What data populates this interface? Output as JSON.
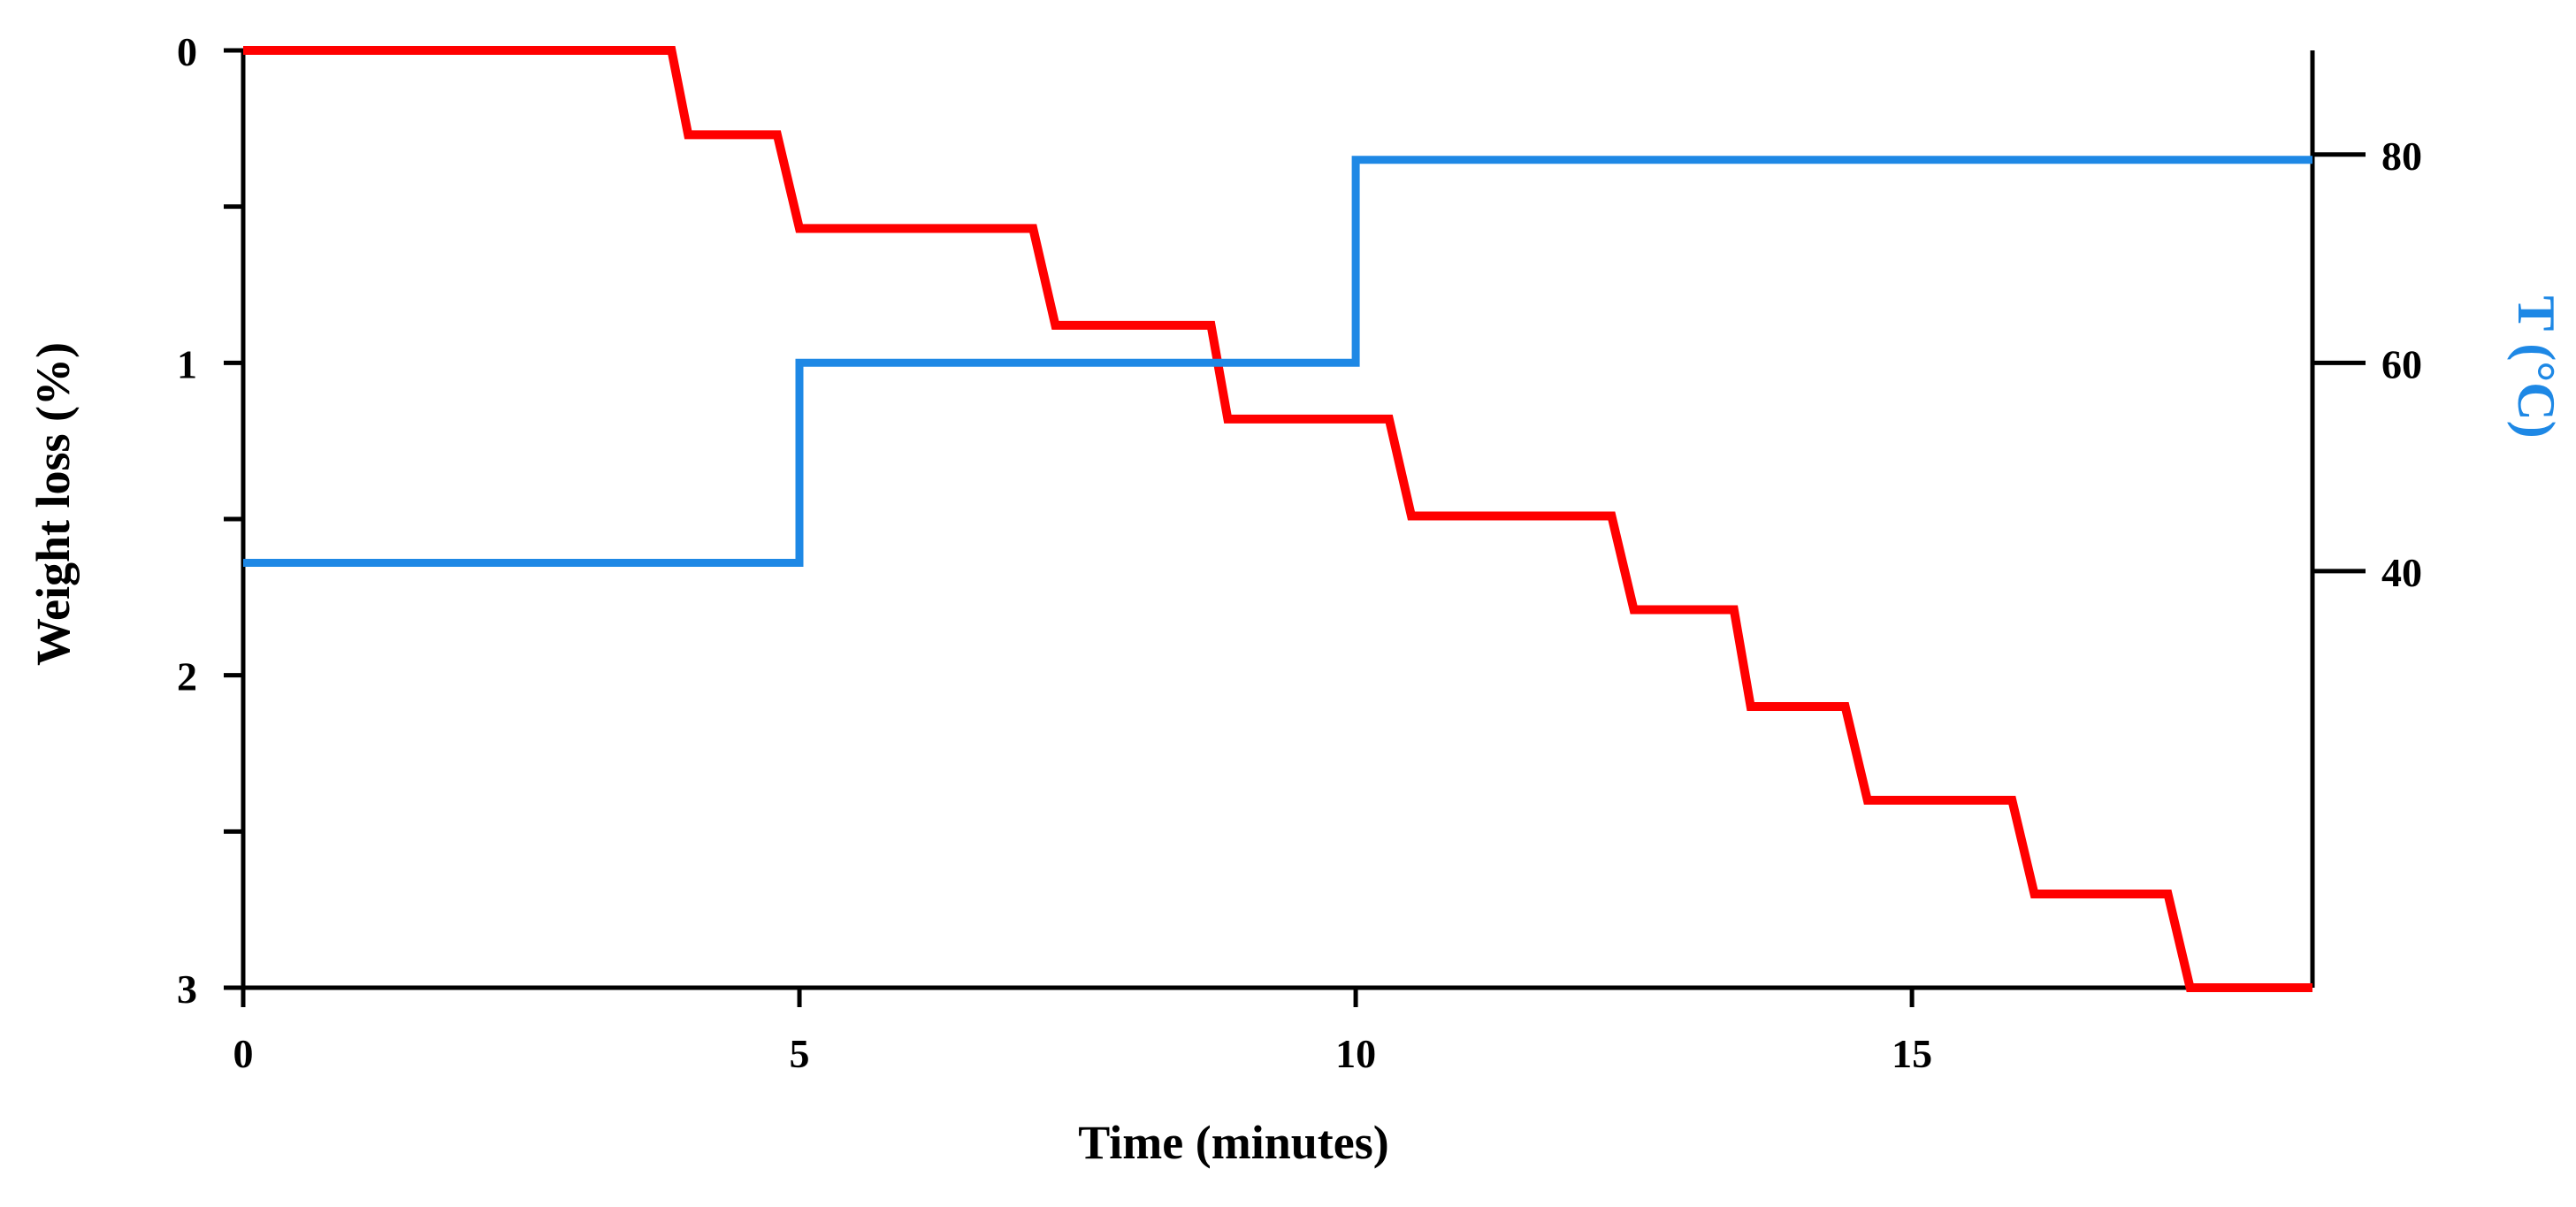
{
  "chart_data": {
    "type": "line",
    "title": "",
    "xlabel": "Time (minutes)",
    "ylabel_left": "Weight loss (%)",
    "ylabel_right": "T (°C)",
    "xlim": [
      0,
      18.6
    ],
    "ylim_left": [
      0,
      3
    ],
    "ylim_left_inverted": true,
    "ylim_right": [
      0,
      90
    ],
    "x_ticks": [
      0,
      5,
      10,
      15
    ],
    "x_tick_labels": [
      "0",
      "5",
      "10",
      "15"
    ],
    "y_left_ticks": [
      0,
      0.5,
      1,
      1.5,
      2,
      2.5,
      3
    ],
    "y_left_tick_labels": [
      "0",
      "",
      "1",
      "",
      "2",
      "",
      "3"
    ],
    "y_right_ticks": [
      40,
      60,
      80
    ],
    "y_right_tick_labels": [
      "40",
      "60",
      "80"
    ],
    "grid": false,
    "colors": {
      "weight_loss": "#ff0000",
      "temperature": "#1e88e5",
      "axes": "#000000",
      "right_label": "#1e88e5"
    },
    "series": [
      {
        "axis": "left",
        "x": [
          0,
          3.85,
          4.0,
          4.8,
          5.0,
          7.1,
          7.3,
          8.7,
          8.85,
          10.3,
          10.5,
          12.3,
          12.5,
          13.4,
          13.55,
          14.4,
          14.6,
          15.9,
          16.1,
          17.3,
          17.5,
          18.6
        ],
        "y": [
          0,
          0,
          0.27,
          0.27,
          0.57,
          0.57,
          0.88,
          0.88,
          1.18,
          1.18,
          1.49,
          1.49,
          1.79,
          1.79,
          2.1,
          2.1,
          2.4,
          2.4,
          2.7,
          2.7,
          3.0,
          3.0
        ]
      },
      {
        "axis": "right",
        "x": [
          0,
          5,
          5,
          10,
          10,
          18.6
        ],
        "y": [
          40.8,
          40.8,
          60,
          60,
          79.5,
          79.5
        ]
      }
    ]
  }
}
